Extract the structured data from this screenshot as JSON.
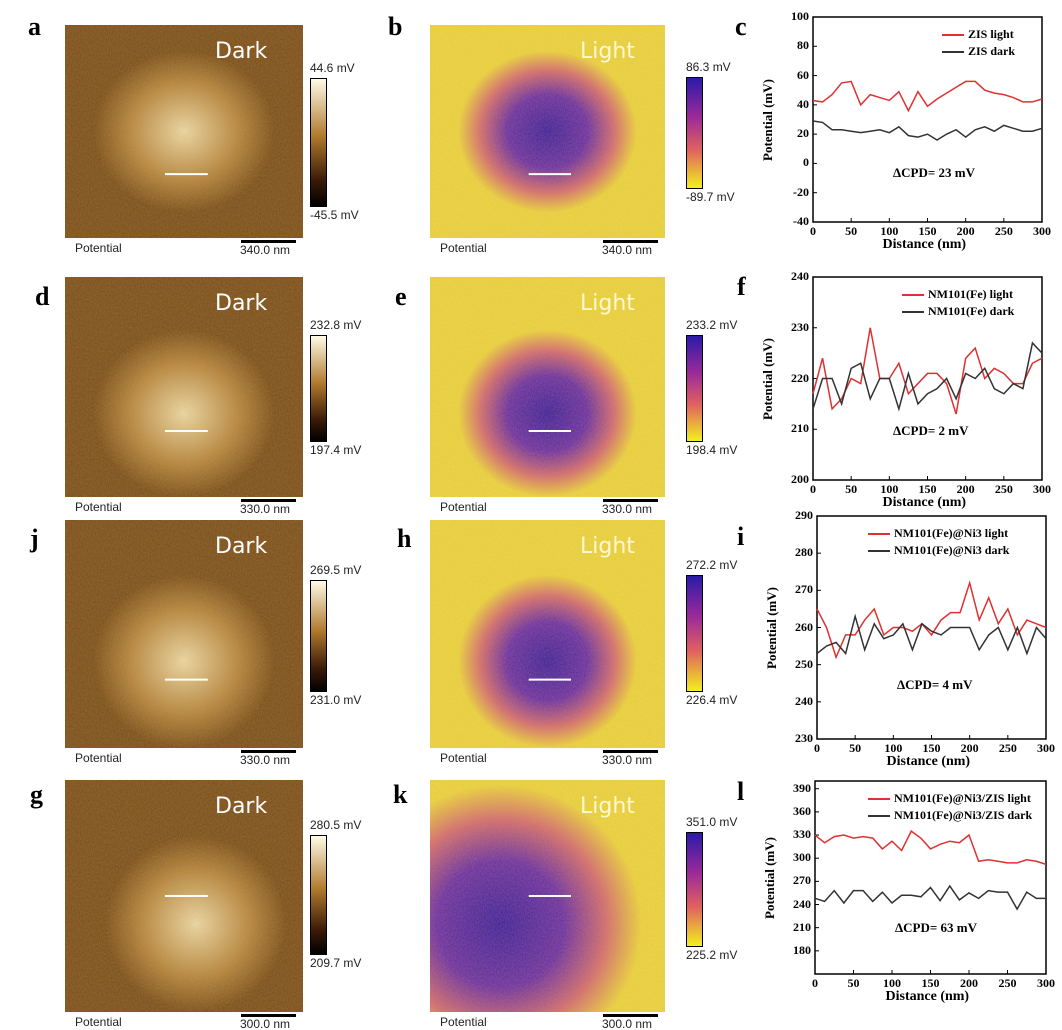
{
  "panels": [
    {
      "letter": "a",
      "mode": "Dark",
      "cb_max": "44.6 mV",
      "cb_min": "-45.5 mV",
      "caption": "Potential",
      "scale": "340.0 nm"
    },
    {
      "letter": "b",
      "mode": "Light",
      "cb_max": "86.3 mV",
      "cb_min": "-89.7 mV",
      "caption": "Potential",
      "scale": "340.0 nm"
    },
    {
      "letter": "d",
      "mode": "Dark",
      "cb_max": "232.8 mV",
      "cb_min": "197.4 mV",
      "caption": "Potential",
      "scale": "330.0 nm"
    },
    {
      "letter": "e",
      "mode": "Light",
      "cb_max": "233.2 mV",
      "cb_min": "198.4 mV",
      "caption": "Potential",
      "scale": "330.0 nm"
    },
    {
      "letter": "j",
      "mode": "Dark",
      "cb_max": "269.5 mV",
      "cb_min": "231.0 mV",
      "caption": "Potential",
      "scale": "330.0 nm"
    },
    {
      "letter": "h",
      "mode": "Light",
      "cb_max": "272.2 mV",
      "cb_min": "226.4 mV",
      "caption": "Potential",
      "scale": "330.0 nm"
    },
    {
      "letter": "g",
      "mode": "Dark",
      "cb_max": "280.5 mV",
      "cb_min": "209.7 mV",
      "caption": "Potential",
      "scale": "300.0 nm"
    },
    {
      "letter": "k",
      "mode": "Light",
      "cb_max": "351.0 mV",
      "cb_min": "225.2 mV",
      "caption": "Potential",
      "scale": "300.0 nm"
    }
  ],
  "colors": {
    "light": "#e03030",
    "dark": "#333333"
  },
  "chart_data": [
    {
      "type": "line",
      "letter": "c",
      "xlabel": "Distance (nm)",
      "ylabel": "Potential (mV)",
      "xlim": [
        0,
        300
      ],
      "ylim": [
        -40,
        100
      ],
      "xticks": [
        0,
        50,
        100,
        150,
        200,
        250,
        300
      ],
      "yticks": [
        -40,
        -20,
        0,
        20,
        40,
        60,
        80,
        100
      ],
      "annotation": "ΔCPD= 23 mV",
      "legend": "top-right",
      "x": [
        0,
        12.5,
        25,
        37.5,
        50,
        62.5,
        75,
        87.5,
        100,
        112.5,
        125,
        137.5,
        150,
        162.5,
        175,
        187.5,
        200,
        212.5,
        225,
        237.5,
        250,
        262.5,
        275,
        287.5,
        300
      ],
      "series": [
        {
          "name": "ZIS light",
          "values": [
            43,
            42,
            47,
            55,
            56,
            40,
            47,
            45,
            43,
            49,
            36,
            49,
            39,
            44,
            48,
            52,
            56,
            56,
            50,
            48,
            47,
            45,
            42,
            42,
            44
          ]
        },
        {
          "name": "ZIS dark",
          "values": [
            29,
            28,
            23,
            23,
            22,
            21,
            22,
            23,
            21,
            25,
            19,
            18,
            20,
            16,
            20,
            23,
            18,
            23,
            25,
            22,
            26,
            24,
            22,
            22,
            24
          ]
        }
      ]
    },
    {
      "type": "line",
      "letter": "f",
      "xlabel": "Distance (nm)",
      "ylabel": "Potential (mV)",
      "xlim": [
        0,
        300
      ],
      "ylim": [
        200,
        240
      ],
      "xticks": [
        0,
        50,
        100,
        150,
        200,
        250,
        300
      ],
      "yticks": [
        200,
        210,
        220,
        230,
        240
      ],
      "annotation": "ΔCPD= 2 mV",
      "legend": "top-right",
      "x": [
        0,
        12.5,
        25,
        37.5,
        50,
        62.5,
        75,
        87.5,
        100,
        112.5,
        125,
        137.5,
        150,
        162.5,
        175,
        187.5,
        200,
        212.5,
        225,
        237.5,
        250,
        262.5,
        275,
        287.5,
        300
      ],
      "series": [
        {
          "name": "NM101(Fe) light",
          "values": [
            217,
            224,
            214,
            216,
            220,
            219,
            230,
            220,
            220,
            223,
            217,
            219,
            221,
            221,
            219,
            213,
            224,
            226,
            220,
            222,
            221,
            219,
            219,
            223,
            224
          ]
        },
        {
          "name": "NM101(Fe) dark",
          "values": [
            214,
            220,
            220,
            215,
            222,
            223,
            216,
            220,
            220,
            214,
            221,
            215,
            217,
            218,
            220,
            216,
            221,
            220,
            222,
            218,
            217,
            219,
            218,
            227,
            225
          ]
        }
      ]
    },
    {
      "type": "line",
      "letter": "i",
      "xlabel": "Distance (nm)",
      "ylabel": "Potential (mV)",
      "xlim": [
        0,
        300
      ],
      "ylim": [
        230,
        290
      ],
      "xticks": [
        0,
        50,
        100,
        150,
        200,
        250,
        300
      ],
      "yticks": [
        230,
        240,
        250,
        260,
        270,
        280,
        290
      ],
      "annotation": "ΔCPD= 4 mV",
      "legend": "top-right",
      "x": [
        0,
        12.5,
        25,
        37.5,
        50,
        62.5,
        75,
        87.5,
        100,
        112.5,
        125,
        137.5,
        150,
        162.5,
        175,
        187.5,
        200,
        212.5,
        225,
        237.5,
        250,
        262.5,
        275,
        287.5,
        300
      ],
      "series": [
        {
          "name": "NM101(Fe)@Ni3 light",
          "values": [
            265,
            260,
            252,
            258,
            258,
            262,
            265,
            258,
            260,
            260,
            259,
            261,
            258,
            262,
            264,
            264,
            272,
            262,
            268,
            261,
            265,
            258,
            262,
            261,
            260
          ]
        },
        {
          "name": "NM101(Fe)@Ni3 dark",
          "values": [
            253,
            255,
            256,
            253,
            263,
            254,
            261,
            257,
            258,
            261,
            254,
            261,
            259,
            258,
            260,
            260,
            260,
            254,
            258,
            260,
            254,
            260,
            253,
            260,
            257
          ]
        }
      ]
    },
    {
      "type": "line",
      "letter": "l",
      "xlabel": "Distance (nm)",
      "ylabel": "Potential (mV)",
      "xlim": [
        0,
        300
      ],
      "ylim": [
        150,
        400
      ],
      "xticks": [
        0,
        50,
        100,
        150,
        200,
        250,
        300
      ],
      "yticks": [
        180,
        210,
        240,
        270,
        300,
        330,
        360,
        390
      ],
      "annotation": "ΔCPD= 63 mV",
      "legend": "top-right",
      "x": [
        0,
        12.5,
        25,
        37.5,
        50,
        62.5,
        75,
        87.5,
        100,
        112.5,
        125,
        137.5,
        150,
        162.5,
        175,
        187.5,
        200,
        212.5,
        225,
        237.5,
        250,
        262.5,
        275,
        287.5,
        300
      ],
      "series": [
        {
          "name": "NM101(Fe)@Ni3/ZIS light",
          "values": [
            330,
            320,
            328,
            330,
            326,
            328,
            326,
            312,
            322,
            310,
            335,
            326,
            312,
            318,
            322,
            320,
            330,
            296,
            298,
            296,
            294,
            294,
            298,
            296,
            292
          ]
        },
        {
          "name": "NM101(Fe)@Ni3/ZIS dark",
          "values": [
            248,
            244,
            258,
            242,
            258,
            258,
            244,
            256,
            242,
            252,
            252,
            250,
            262,
            245,
            264,
            246,
            255,
            248,
            258,
            256,
            256,
            234,
            256,
            248,
            248
          ]
        }
      ]
    }
  ]
}
